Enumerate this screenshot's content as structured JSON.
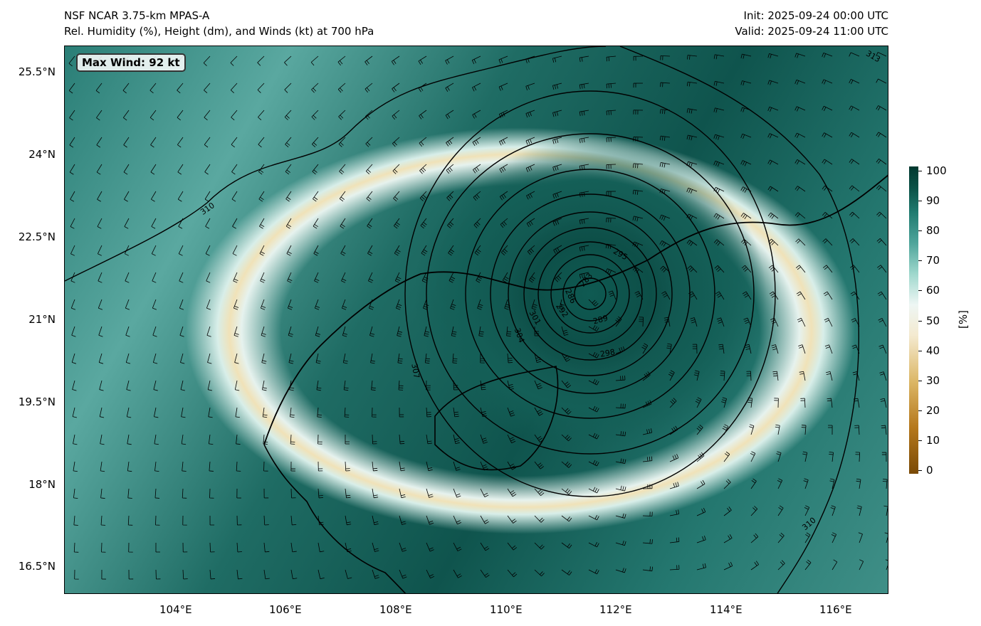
{
  "header": {
    "title_left_1": "NSF NCAR 3.75-km MPAS-A",
    "title_left_2": "Rel. Humidity (%), Height (dm), and Winds (kt) at 700 hPa",
    "title_right_1": "Init: 2025-09-24 00:00 UTC",
    "title_right_2": "Valid: 2025-09-24 11:00 UTC"
  },
  "map": {
    "max_wind_label": "Max Wind: 92 kt",
    "lat_labels": [
      "25.5°N",
      "24°N",
      "22.5°N",
      "21°N",
      "19.5°N",
      "18°N",
      "16.5°N"
    ],
    "lon_labels": [
      "104°E",
      "106°E",
      "108°E",
      "110°E",
      "112°E",
      "114°E",
      "116°E"
    ],
    "contour_labels": [
      "310",
      "313",
      "307",
      "304",
      "301",
      "298",
      "295",
      "292",
      "289",
      "286",
      "283",
      "310"
    ]
  },
  "colorbar": {
    "unit_label": "[%]",
    "ticks": [
      "0",
      "10",
      "20",
      "30",
      "40",
      "50",
      "60",
      "70",
      "80",
      "90",
      "100"
    ],
    "low_color": "#7a4a06",
    "mid_color": "#f4f4f0",
    "high_color": "#00382f"
  }
}
